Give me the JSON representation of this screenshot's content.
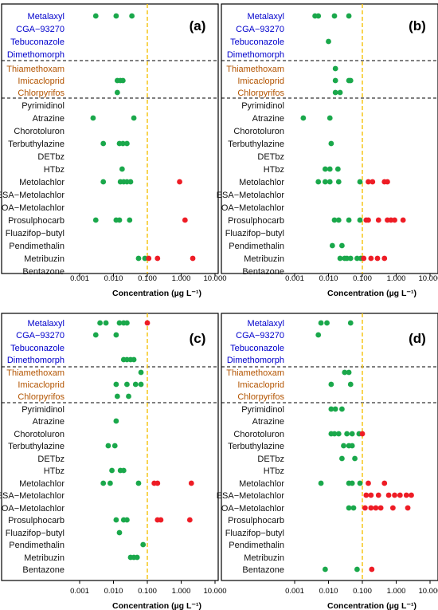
{
  "figure": {
    "xlabel": "Concentration (µg L⁻¹)",
    "xticks": [
      "0.001",
      "0.010",
      "0.100",
      "1.000",
      "10.000"
    ],
    "xlim": [
      0.001,
      10
    ],
    "xscale": "log",
    "threshold": 0.1,
    "colors": {
      "green": "#1aa84b",
      "red": "#ee1c25",
      "threshold": "#f5c518",
      "fungicide_label": "#0000cc",
      "insecticide_label": "#b35400",
      "herbicide_label": "#111111"
    }
  },
  "chart_data": [
    {
      "type": "scatter",
      "panel": "(a)",
      "compounds": [
        {
          "name": "Metalaxyl",
          "group": "fungicide",
          "green": [
            0.003,
            0.012,
            0.035
          ],
          "red": []
        },
        {
          "name": "CGA−93270",
          "group": "fungicide",
          "green": [],
          "red": []
        },
        {
          "name": "Tebuconazole",
          "group": "fungicide",
          "green": [],
          "red": []
        },
        {
          "name": "Dimethomorph",
          "group": "fungicide",
          "green": [],
          "red": []
        },
        {
          "name": "Thiamethoxam",
          "group": "insecticide",
          "green": [],
          "red": []
        },
        {
          "name": "Imicacloprid",
          "group": "insecticide",
          "green": [
            0.013,
            0.016,
            0.019
          ],
          "red": []
        },
        {
          "name": "Chlorpyrifos",
          "group": "insecticide",
          "green": [
            0.013
          ],
          "red": []
        },
        {
          "name": "Pyrimidinol",
          "group": "herbicide",
          "green": [],
          "red": []
        },
        {
          "name": "Atrazine",
          "group": "herbicide",
          "green": [
            0.0025,
            0.04
          ],
          "red": []
        },
        {
          "name": "Chorotoluron",
          "group": "herbicide",
          "green": [],
          "red": []
        },
        {
          "name": "Terbuthylazine",
          "group": "herbicide",
          "green": [
            0.005,
            0.015,
            0.019,
            0.025
          ],
          "red": []
        },
        {
          "name": "DETbz",
          "group": "herbicide",
          "green": [],
          "red": []
        },
        {
          "name": "HTbz",
          "group": "herbicide",
          "green": [
            0.018
          ],
          "red": []
        },
        {
          "name": "Metolachlor",
          "group": "herbicide",
          "green": [
            0.005,
            0.016,
            0.02,
            0.025,
            0.032
          ],
          "red": [
            0.9
          ]
        },
        {
          "name": "ESA−Metolachlor",
          "group": "herbicide",
          "green": [],
          "red": []
        },
        {
          "name": "OA−Metolachlor",
          "group": "herbicide",
          "green": [],
          "red": []
        },
        {
          "name": "Prosulphocarb",
          "group": "herbicide",
          "green": [
            0.003,
            0.012,
            0.015,
            0.03
          ],
          "red": [
            1.3
          ]
        },
        {
          "name": "Fluazifop−butyl",
          "group": "herbicide",
          "green": [],
          "red": []
        },
        {
          "name": "Pendimethalin",
          "group": "herbicide",
          "green": [],
          "red": []
        },
        {
          "name": "Metribuzin",
          "group": "herbicide",
          "green": [
            0.055,
            0.085
          ],
          "red": [
            0.11,
            0.2,
            2.2
          ]
        },
        {
          "name": "Bentazone",
          "group": "herbicide",
          "green": [],
          "red": []
        }
      ]
    },
    {
      "type": "scatter",
      "panel": "(b)",
      "compounds": [
        {
          "name": "Metalaxyl",
          "group": "fungicide",
          "green": [
            0.004,
            0.005,
            0.015,
            0.04
          ],
          "red": []
        },
        {
          "name": "CGA−93270",
          "group": "fungicide",
          "green": [],
          "red": []
        },
        {
          "name": "Tebuconazole",
          "group": "fungicide",
          "green": [
            0.01
          ],
          "red": []
        },
        {
          "name": "Dimethomorph",
          "group": "fungicide",
          "green": [],
          "red": []
        },
        {
          "name": "Thiamethoxam",
          "group": "insecticide",
          "green": [
            0.016
          ],
          "red": []
        },
        {
          "name": "Imicacloprid",
          "group": "insecticide",
          "green": [
            0.016,
            0.04,
            0.045
          ],
          "red": []
        },
        {
          "name": "Chlorpyrifos",
          "group": "insecticide",
          "green": [
            0.016,
            0.022
          ],
          "red": []
        },
        {
          "name": "Pyrimidinol",
          "group": "herbicide",
          "green": [],
          "red": []
        },
        {
          "name": "Atrazine",
          "group": "herbicide",
          "green": [
            0.0018,
            0.011
          ],
          "red": []
        },
        {
          "name": "Chorotoluron",
          "group": "herbicide",
          "green": [],
          "red": []
        },
        {
          "name": "Terbuthylazine",
          "group": "herbicide",
          "green": [
            0.012
          ],
          "red": []
        },
        {
          "name": "DETbz",
          "group": "herbicide",
          "green": [],
          "red": []
        },
        {
          "name": "HTbz",
          "group": "herbicide",
          "green": [
            0.008,
            0.011,
            0.019
          ],
          "red": []
        },
        {
          "name": "Metolachlor",
          "group": "herbicide",
          "green": [
            0.005,
            0.008,
            0.011,
            0.02,
            0.085
          ],
          "red": [
            0.15,
            0.2,
            0.45,
            0.55
          ]
        },
        {
          "name": "ESA−Metolachlor",
          "group": "herbicide",
          "green": [],
          "red": []
        },
        {
          "name": "OA−Metolachlor",
          "group": "herbicide",
          "green": [],
          "red": []
        },
        {
          "name": "Prosulphocarb",
          "group": "herbicide",
          "green": [
            0.015,
            0.02,
            0.04,
            0.085
          ],
          "red": [
            0.13,
            0.15,
            0.3,
            0.55,
            0.7,
            0.9,
            1.6
          ]
        },
        {
          "name": "Fluazifop−butyl",
          "group": "herbicide",
          "green": [],
          "red": []
        },
        {
          "name": "Pendimethalin",
          "group": "herbicide",
          "green": [
            0.013,
            0.025
          ],
          "red": []
        },
        {
          "name": "Metribuzin",
          "group": "herbicide",
          "green": [
            0.022,
            0.03,
            0.035,
            0.045,
            0.07,
            0.09
          ],
          "red": [
            0.11,
            0.18,
            0.28,
            0.45
          ]
        },
        {
          "name": "Bentazone",
          "group": "herbicide",
          "green": [],
          "red": []
        }
      ]
    },
    {
      "type": "scatter",
      "panel": "(c)",
      "compounds": [
        {
          "name": "Metalaxyl",
          "group": "fungicide",
          "green": [
            0.004,
            0.006,
            0.015,
            0.02,
            0.025
          ],
          "red": [
            0.1
          ]
        },
        {
          "name": "CGA−93270",
          "group": "fungicide",
          "green": [
            0.003,
            0.012
          ],
          "red": []
        },
        {
          "name": "Tebuconazole",
          "group": "fungicide",
          "green": [],
          "red": []
        },
        {
          "name": "Dimethomorph",
          "group": "fungicide",
          "green": [
            0.02,
            0.025,
            0.032,
            0.04
          ],
          "red": []
        },
        {
          "name": "Thiamethoxam",
          "group": "insecticide",
          "green": [
            0.065
          ],
          "red": []
        },
        {
          "name": "Imicacloprid",
          "group": "insecticide",
          "green": [
            0.012,
            0.025,
            0.045,
            0.065
          ],
          "red": []
        },
        {
          "name": "Chlorpyrifos",
          "group": "insecticide",
          "green": [
            0.013,
            0.028
          ],
          "red": []
        },
        {
          "name": "Pyrimidinol",
          "group": "herbicide",
          "green": [],
          "red": []
        },
        {
          "name": "Atrazine",
          "group": "herbicide",
          "green": [
            0.012
          ],
          "red": []
        },
        {
          "name": "Chorotoluron",
          "group": "herbicide",
          "green": [],
          "red": []
        },
        {
          "name": "Terbuthylazine",
          "group": "herbicide",
          "green": [
            0.007,
            0.011
          ],
          "red": []
        },
        {
          "name": "DETbz",
          "group": "herbicide",
          "green": [],
          "red": []
        },
        {
          "name": "HTbz",
          "group": "herbicide",
          "green": [
            0.009,
            0.016,
            0.02
          ],
          "red": []
        },
        {
          "name": "Metolachlor",
          "group": "herbicide",
          "green": [
            0.005,
            0.008,
            0.055
          ],
          "red": [
            0.16,
            0.2,
            2.0
          ]
        },
        {
          "name": "ESA−Metolachlor",
          "group": "herbicide",
          "green": [],
          "red": []
        },
        {
          "name": "OA−Metolachlor",
          "group": "herbicide",
          "green": [],
          "red": []
        },
        {
          "name": "Prosulphocarb",
          "group": "herbicide",
          "green": [
            0.012,
            0.02,
            0.025
          ],
          "red": [
            0.2,
            0.25,
            1.8
          ]
        },
        {
          "name": "Fluazifop−butyl",
          "group": "herbicide",
          "green": [
            0.015
          ],
          "red": []
        },
        {
          "name": "Pendimethalin",
          "group": "herbicide",
          "green": [
            0.075
          ],
          "red": []
        },
        {
          "name": "Metribuzin",
          "group": "herbicide",
          "green": [
            0.032,
            0.04,
            0.05
          ],
          "red": []
        },
        {
          "name": "Bentazone",
          "group": "herbicide",
          "green": [],
          "red": []
        }
      ]
    },
    {
      "type": "scatter",
      "panel": "(d)",
      "compounds": [
        {
          "name": "Metalaxyl",
          "group": "fungicide",
          "green": [
            0.006,
            0.009,
            0.045
          ],
          "red": []
        },
        {
          "name": "CGA−93270",
          "group": "fungicide",
          "green": [
            0.005
          ],
          "red": []
        },
        {
          "name": "Tebuconazole",
          "group": "fungicide",
          "green": [],
          "red": []
        },
        {
          "name": "Dimethomorph",
          "group": "fungicide",
          "green": [],
          "red": []
        },
        {
          "name": "Thiamethoxam",
          "group": "insecticide",
          "green": [
            0.03,
            0.04
          ],
          "red": []
        },
        {
          "name": "Imicacloprid",
          "group": "insecticide",
          "green": [
            0.012,
            0.045
          ],
          "red": []
        },
        {
          "name": "Chlorpyrifos",
          "group": "insecticide",
          "green": [],
          "red": []
        },
        {
          "name": "Pyrimidinol",
          "group": "herbicide",
          "green": [
            0.012,
            0.016,
            0.025
          ],
          "red": []
        },
        {
          "name": "Atrazine",
          "group": "herbicide",
          "green": [],
          "red": []
        },
        {
          "name": "Chorotoluron",
          "group": "herbicide",
          "green": [
            0.012,
            0.015,
            0.02,
            0.035,
            0.05,
            0.08
          ],
          "red": [
            0.1
          ]
        },
        {
          "name": "Terbuthylazine",
          "group": "herbicide",
          "green": [
            0.028,
            0.04,
            0.05
          ],
          "red": []
        },
        {
          "name": "DETbz",
          "group": "herbicide",
          "green": [
            0.025,
            0.06
          ],
          "red": []
        },
        {
          "name": "HTbz",
          "group": "herbicide",
          "green": [],
          "red": []
        },
        {
          "name": "Metolachlor",
          "group": "herbicide",
          "green": [
            0.006,
            0.04,
            0.05,
            0.085
          ],
          "red": [
            0.15,
            0.45
          ]
        },
        {
          "name": "ESA−Metolachlor",
          "group": "herbicide",
          "green": [],
          "red": [
            0.13,
            0.18,
            0.3,
            0.6,
            0.9,
            1.3,
            2.0,
            2.8
          ]
        },
        {
          "name": "OA−Metolachlor",
          "group": "herbicide",
          "green": [
            0.04,
            0.055
          ],
          "red": [
            0.12,
            0.18,
            0.25,
            0.35,
            0.8,
            2.2
          ]
        },
        {
          "name": "Prosulphocarb",
          "group": "herbicide",
          "green": [],
          "red": []
        },
        {
          "name": "Fluazifop−butyl",
          "group": "herbicide",
          "green": [],
          "red": []
        },
        {
          "name": "Pendimethalin",
          "group": "herbicide",
          "green": [],
          "red": []
        },
        {
          "name": "Metribuzin",
          "group": "herbicide",
          "green": [],
          "red": []
        },
        {
          "name": "Bentazone",
          "group": "herbicide",
          "green": [
            0.008,
            0.07
          ],
          "red": [
            0.19
          ]
        }
      ]
    }
  ]
}
